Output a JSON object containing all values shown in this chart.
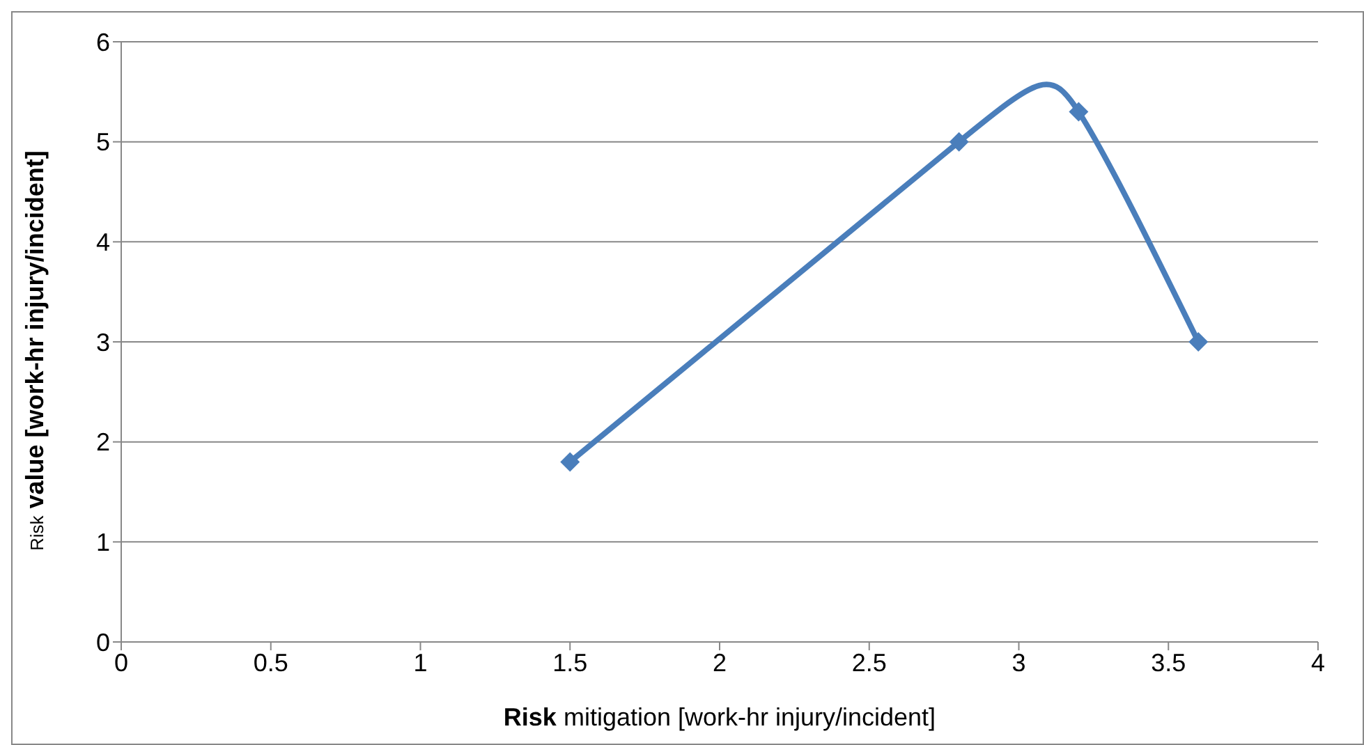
{
  "chart_data": {
    "type": "line",
    "xlabel": "Risk mitigation [work-hr injury/incident]",
    "ylabel": "Risk value [work-hr injury/incident]",
    "x": [
      1.5,
      2.8,
      3.2,
      3.6
    ],
    "series": [
      {
        "color": "#4a7ebb",
        "values": [
          1.8,
          5,
          5.3,
          3
        ]
      }
    ],
    "xlim": [
      0,
      4
    ],
    "xticks": [
      0,
      0.5,
      1,
      1.5,
      2,
      2.5,
      3,
      3.5,
      4
    ],
    "ylim": [
      0,
      6
    ],
    "yticks": [
      0,
      1,
      2,
      3,
      4,
      5,
      6
    ],
    "grid": "y",
    "legend": false,
    "marker": "diamond",
    "line_style": "solid"
  }
}
